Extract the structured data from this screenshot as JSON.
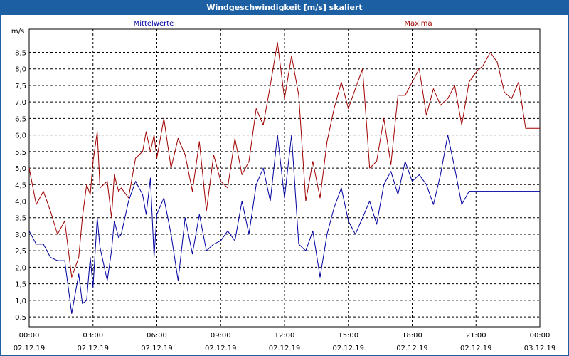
{
  "window": {
    "title": "Windgeschwindigkeit [m/s] skaliert"
  },
  "colors": {
    "title_bar": "#1c5fa3",
    "mittelwerte": "#0000a0",
    "maxima": "#a00000",
    "grid": "#000000"
  },
  "chart_data": {
    "type": "line",
    "title": "Windgeschwindigkeit [m/s] skaliert",
    "ylabel": "m/s",
    "xlabel": "",
    "ylim": [
      0.2,
      9.2
    ],
    "yticks": [
      "0,5",
      "1,0",
      "1,5",
      "2,0",
      "2,5",
      "3,0",
      "3,5",
      "4,0",
      "4,5",
      "5,0",
      "5,5",
      "6,0",
      "6,5",
      "7,0",
      "7,5",
      "8,0",
      "8,5"
    ],
    "ytick_values": [
      0.5,
      1.0,
      1.5,
      2.0,
      2.5,
      3.0,
      3.5,
      4.0,
      4.5,
      5.0,
      5.5,
      6.0,
      6.5,
      7.0,
      7.5,
      8.0,
      8.5
    ],
    "xlim": [
      0,
      24
    ],
    "xtick_values": [
      0,
      3,
      6,
      9,
      12,
      15,
      18,
      21,
      24
    ],
    "xticks": [
      {
        "time": "00:00",
        "date": "02.12.19"
      },
      {
        "time": "03:00",
        "date": "02.12.19"
      },
      {
        "time": "06:00",
        "date": "02.12.19"
      },
      {
        "time": "09:00",
        "date": "02.12.19"
      },
      {
        "time": "12:00",
        "date": "02.12.19"
      },
      {
        "time": "15:00",
        "date": "02.12.19"
      },
      {
        "time": "18:00",
        "date": "02.12.19"
      },
      {
        "time": "21:00",
        "date": "02.12.19"
      },
      {
        "time": "00:00",
        "date": "03.12.19"
      }
    ],
    "grid": true,
    "series": [
      {
        "name": "Mittelwerte",
        "color": "#0000a0",
        "x": [
          0,
          0.33,
          0.67,
          1,
          1.33,
          1.67,
          2,
          2.33,
          2.5,
          2.7,
          2.87,
          3,
          3.2,
          3.33,
          3.67,
          3.87,
          4,
          4.2,
          4.33,
          4.67,
          5,
          5.33,
          5.5,
          5.7,
          5.87,
          6,
          6.33,
          6.67,
          7,
          7.33,
          7.67,
          8,
          8.33,
          8.67,
          9,
          9.33,
          9.67,
          10,
          10.33,
          10.67,
          11,
          11.33,
          11.67,
          12,
          12.33,
          12.67,
          13,
          13.33,
          13.67,
          14,
          14.33,
          14.67,
          15,
          15.33,
          15.67,
          16,
          16.33,
          16.67,
          17,
          17.33,
          17.67,
          18,
          18.33,
          18.67,
          19,
          19.33,
          19.67,
          20,
          20.33,
          20.67,
          21,
          21.33,
          21.67,
          22,
          22.33,
          22.67,
          23,
          23.33,
          23.67,
          24
        ],
        "values": [
          3.1,
          2.7,
          2.7,
          2.3,
          2.2,
          2.2,
          0.6,
          1.8,
          0.9,
          1.0,
          2.3,
          1.4,
          3.5,
          2.6,
          1.6,
          2.5,
          3.4,
          2.9,
          3.0,
          4.0,
          4.6,
          4.2,
          3.6,
          4.7,
          2.3,
          3.6,
          4.1,
          3.0,
          1.6,
          3.5,
          2.4,
          3.6,
          2.5,
          2.7,
          2.8,
          3.1,
          2.8,
          4.0,
          3.0,
          4.5,
          5.0,
          4.0,
          6.0,
          4.1,
          6.0,
          2.7,
          2.5,
          3.1,
          1.7,
          3.0,
          3.8,
          4.4,
          3.4,
          3.0,
          3.5,
          4.0,
          3.3,
          4.5,
          4.9,
          4.2,
          5.2,
          4.6,
          4.8,
          4.5,
          3.9,
          4.8,
          6.0,
          5.0,
          3.9,
          4.3,
          4.3,
          4.3,
          4.3,
          4.3,
          4.3,
          4.3,
          4.3,
          4.3,
          4.3,
          4.3
        ]
      },
      {
        "name": "Maxima",
        "color": "#a00000",
        "x": [
          0,
          0.33,
          0.67,
          1,
          1.33,
          1.67,
          2,
          2.33,
          2.5,
          2.7,
          2.87,
          3,
          3.2,
          3.33,
          3.67,
          3.87,
          4,
          4.2,
          4.33,
          4.67,
          5,
          5.33,
          5.5,
          5.7,
          5.87,
          6,
          6.33,
          6.67,
          7,
          7.33,
          7.67,
          8,
          8.33,
          8.67,
          9,
          9.33,
          9.67,
          10,
          10.33,
          10.67,
          11,
          11.33,
          11.67,
          12,
          12.33,
          12.67,
          13,
          13.33,
          13.67,
          14,
          14.33,
          14.67,
          15,
          15.33,
          15.67,
          16,
          16.33,
          16.67,
          17,
          17.33,
          17.67,
          18,
          18.33,
          18.67,
          19,
          19.33,
          19.67,
          20,
          20.33,
          20.67,
          21,
          21.33,
          21.67,
          22,
          22.33,
          22.67,
          23,
          23.33,
          23.67,
          24
        ],
        "values": [
          5.0,
          3.9,
          4.3,
          3.7,
          3.0,
          3.4,
          1.7,
          2.3,
          3.5,
          4.5,
          4.2,
          5.2,
          6.1,
          4.4,
          4.6,
          3.5,
          4.8,
          4.3,
          4.4,
          4.1,
          5.3,
          5.5,
          6.1,
          5.5,
          6.0,
          5.3,
          6.5,
          5.0,
          5.9,
          5.4,
          4.3,
          5.8,
          3.7,
          5.4,
          4.6,
          4.4,
          5.9,
          4.8,
          5.2,
          6.8,
          6.3,
          7.5,
          8.8,
          7.1,
          8.4,
          7.2,
          4.0,
          5.2,
          4.1,
          5.8,
          6.8,
          7.6,
          6.8,
          7.4,
          8.0,
          5.0,
          5.2,
          6.5,
          5.1,
          7.2,
          7.2,
          7.6,
          8.0,
          6.6,
          7.4,
          6.9,
          7.1,
          7.5,
          6.3,
          7.6,
          7.9,
          8.1,
          8.5,
          8.2,
          7.3,
          7.1,
          7.6,
          6.2,
          6.2,
          6.2
        ]
      }
    ]
  }
}
